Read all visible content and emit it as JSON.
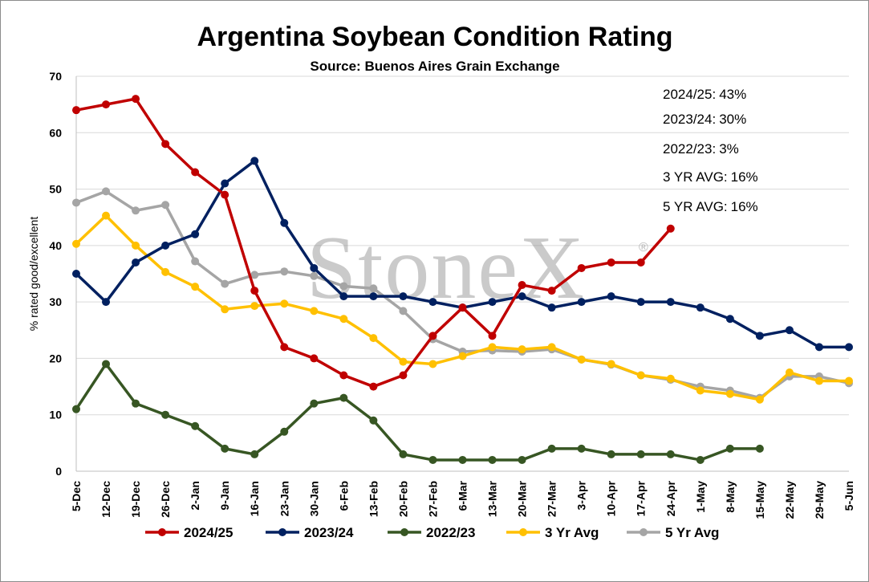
{
  "watermark": "StoneX",
  "watermark_mark": "®",
  "chart_data": {
    "type": "line",
    "title": "Argentina Soybean Condition Rating",
    "subtitle": "Source: Buenos Aires Grain Exchange",
    "ylabel": "% rated good/excellent",
    "xlabel": "",
    "ylim": [
      0,
      70
    ],
    "yticks": [
      0,
      10,
      20,
      30,
      40,
      50,
      60,
      70
    ],
    "grid": "horizontal",
    "legend_position": "bottom",
    "categories": [
      "5-Dec",
      "12-Dec",
      "19-Dec",
      "26-Dec",
      "2-Jan",
      "9-Jan",
      "16-Jan",
      "23-Jan",
      "30-Jan",
      "6-Feb",
      "13-Feb",
      "20-Feb",
      "27-Feb",
      "6-Mar",
      "13-Mar",
      "20-Mar",
      "27-Mar",
      "3-Apr",
      "10-Apr",
      "17-Apr",
      "24-Apr",
      "1-May",
      "8-May",
      "15-May",
      "22-May",
      "29-May",
      "5-Jun"
    ],
    "series": [
      {
        "name": "2024/25",
        "color": "#c00000",
        "values": [
          64,
          65,
          66,
          58,
          53,
          49,
          32,
          22,
          20,
          17,
          15,
          17,
          24,
          29,
          24,
          33,
          32,
          36,
          37,
          37,
          43,
          null,
          null,
          null,
          null,
          null,
          null
        ]
      },
      {
        "name": "2023/24",
        "color": "#002060",
        "values": [
          35,
          30,
          37,
          40,
          42,
          51,
          55,
          44,
          36,
          31,
          31,
          31,
          30,
          29,
          30,
          31,
          29,
          30,
          31,
          30,
          30,
          29,
          27,
          24,
          25,
          22,
          22
        ]
      },
      {
        "name": "2022/23",
        "color": "#375623",
        "values": [
          11,
          19,
          12,
          10,
          8,
          4,
          3,
          7,
          12,
          13,
          9,
          3,
          2,
          2,
          2,
          2,
          4,
          4,
          3,
          3,
          3,
          2,
          4,
          4,
          null,
          null,
          null
        ]
      },
      {
        "name": "3 Yr Avg",
        "color": "#ffc000",
        "values": [
          40.3,
          45.3,
          40,
          35.3,
          32.7,
          28.7,
          29.3,
          29.7,
          28.4,
          27,
          23.6,
          19.4,
          19,
          20.4,
          22,
          21.6,
          22,
          19.8,
          19,
          17,
          16.4,
          14.3,
          13.7,
          12.7,
          17.5,
          16,
          16
        ]
      },
      {
        "name": "5 Yr Avg",
        "color": "#a5a5a5",
        "values": [
          47.6,
          49.6,
          46.2,
          47.2,
          37.2,
          33.2,
          34.8,
          35.4,
          34.6,
          32.8,
          32.4,
          28.4,
          23.4,
          21.2,
          21.4,
          21.2,
          21.6,
          19.8,
          18.9,
          17,
          16.2,
          15,
          14.3,
          13,
          16.8,
          16.8,
          15.6
        ]
      }
    ],
    "annotations": [
      {
        "label": "2024/25:",
        "value": "43%"
      },
      {
        "label": "2023/24:",
        "value": "30%"
      },
      {
        "label": "2022/23:",
        "value": "3%"
      },
      {
        "label": "3 YR AVG:",
        "value": "16%"
      },
      {
        "label": "5 YR AVG:",
        "value": "16%"
      }
    ]
  }
}
